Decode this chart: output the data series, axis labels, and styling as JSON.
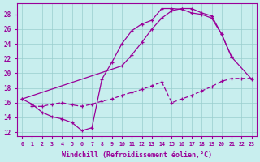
{
  "background_color": "#c8eeee",
  "line_color": "#990099",
  "xlabel": "Windchill (Refroidissement éolien,°C)",
  "xlim": [
    -0.5,
    23.5
  ],
  "ylim": [
    11.5,
    29.5
  ],
  "ytick_vals": [
    12,
    14,
    16,
    18,
    20,
    22,
    24,
    26,
    28
  ],
  "xtick_vals": [
    0,
    1,
    2,
    3,
    4,
    5,
    6,
    7,
    8,
    9,
    10,
    11,
    12,
    13,
    14,
    15,
    16,
    17,
    18,
    19,
    20,
    21,
    22,
    23
  ],
  "curve1_x": [
    0,
    1,
    2,
    3,
    4,
    5,
    6,
    7,
    8,
    9,
    10,
    11,
    12,
    13,
    14,
    15,
    16,
    17,
    18,
    19,
    20,
    21
  ],
  "curve1_y": [
    16.5,
    15.8,
    14.7,
    14.1,
    13.8,
    13.3,
    12.2,
    12.6,
    19.2,
    21.5,
    24.0,
    25.8,
    26.7,
    27.2,
    28.8,
    28.8,
    28.7,
    28.2,
    28.0,
    27.5,
    25.3,
    22.2
  ],
  "curve2_x": [
    0,
    10,
    11,
    12,
    13,
    14,
    15,
    16,
    17,
    18,
    19,
    20,
    21,
    23
  ],
  "curve2_y": [
    16.5,
    21.0,
    22.5,
    24.2,
    26.0,
    27.5,
    28.5,
    28.8,
    28.8,
    28.2,
    27.8,
    25.3,
    22.2,
    19.2
  ],
  "curve3_x": [
    1,
    2,
    3,
    4,
    5,
    6,
    7,
    8,
    9,
    10,
    11,
    12,
    13,
    14,
    15,
    16,
    17,
    18,
    19,
    20,
    21,
    22,
    23
  ],
  "curve3_y": [
    15.5,
    15.5,
    15.8,
    16.0,
    15.7,
    15.5,
    15.8,
    16.2,
    16.5,
    17.0,
    17.4,
    17.8,
    18.3,
    18.8,
    16.0,
    16.5,
    17.0,
    17.6,
    18.2,
    18.9,
    19.3,
    19.3,
    19.3
  ]
}
